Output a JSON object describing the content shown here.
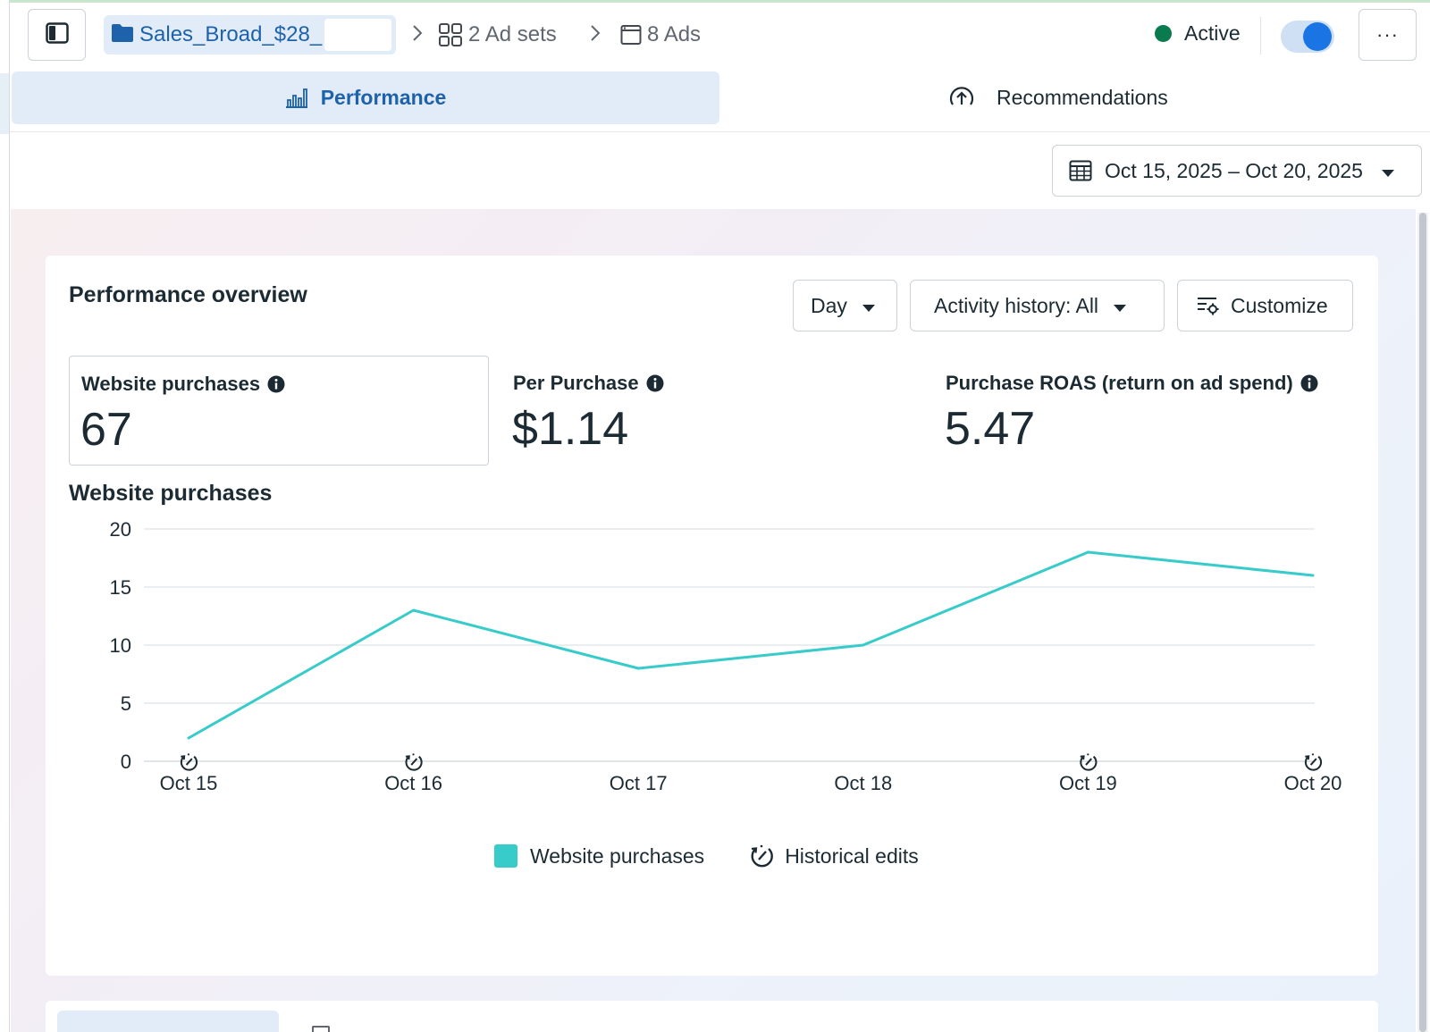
{
  "header": {
    "campaign_name": "Sales_Broad_$28_",
    "breadcrumbs": [
      {
        "label": "2 Ad sets",
        "icon": "grid-icon"
      },
      {
        "label": "8 Ads",
        "icon": "ad-window-icon"
      }
    ],
    "status_label": "Active",
    "status_color": "#0a7a4f",
    "toggle_on": true,
    "more_label": "···"
  },
  "tabs": [
    {
      "label": "Performance",
      "icon": "bar-chart-icon",
      "active": true
    },
    {
      "label": "Recommendations",
      "icon": "arrow-up-circle-icon",
      "active": false
    }
  ],
  "date_range": "Oct 15, 2025 – Oct 20, 2025",
  "overview": {
    "title": "Performance overview",
    "controls": {
      "granularity": "Day",
      "activity_history": "Activity history: All",
      "customize": "Customize"
    },
    "metrics": [
      {
        "label": "Website purchases",
        "value": "67"
      },
      {
        "label": "Per Purchase",
        "value": "$1.14"
      },
      {
        "label": "Purchase ROAS (return on ad spend)",
        "value": "5.47"
      }
    ],
    "chart_title": "Website purchases",
    "legend": {
      "series_label": "Website purchases",
      "edits_label": "Historical edits"
    }
  },
  "chart_data": {
    "type": "line",
    "title": "Website purchases",
    "categories": [
      "Oct 15",
      "Oct 16",
      "Oct 17",
      "Oct 18",
      "Oct 19",
      "Oct 20"
    ],
    "series": [
      {
        "name": "Website purchases",
        "values": [
          2,
          13,
          8,
          10,
          18,
          16
        ],
        "color": "#37cbc9"
      }
    ],
    "historical_edits": [
      "Oct 15",
      "Oct 16",
      "Oct 19",
      "Oct 20"
    ],
    "yticks": [
      0,
      5,
      10,
      15,
      20
    ],
    "ylim": [
      0,
      20
    ],
    "grid": true,
    "legend_position": "bottom"
  }
}
